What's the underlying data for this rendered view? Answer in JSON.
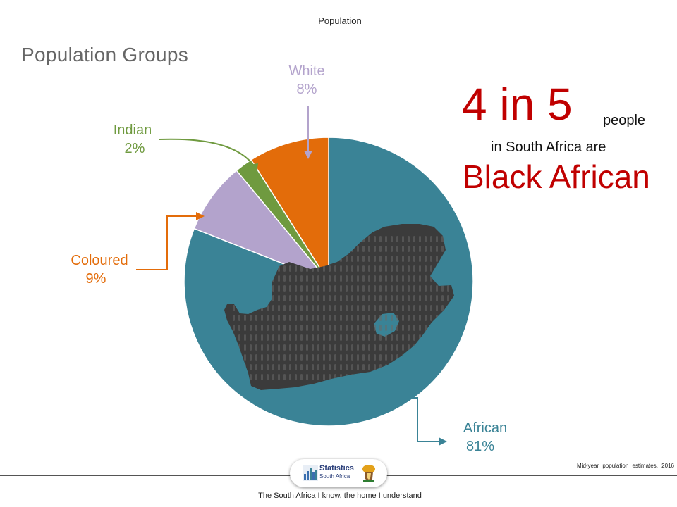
{
  "header": {
    "section": "Population"
  },
  "page_title": "Population Groups",
  "headline": {
    "big": "4 in 5",
    "small_1": "people",
    "small_2": "in South Africa are",
    "emphasis": "Black African"
  },
  "labels": {
    "white": {
      "name": "White",
      "pct": "8%"
    },
    "indian": {
      "name": "Indian",
      "pct": "2%"
    },
    "coloured": {
      "name": "Coloured",
      "pct": "9%"
    },
    "african": {
      "name": "African",
      "pct": "81%"
    }
  },
  "chart_data": {
    "type": "pie",
    "categories": [
      "African",
      "White",
      "Indian",
      "Coloured"
    ],
    "values": [
      81,
      8,
      2,
      9
    ],
    "colors": [
      "#3a8396",
      "#b3a3cc",
      "#6f9a3f",
      "#e36c0a"
    ],
    "title": "Population Groups",
    "start_angle_deg": 0,
    "direction": "clockwise"
  },
  "source": "Mid-year population estimates, 2016",
  "footer": {
    "tagline": "The South Africa I know, the home I understand",
    "logo_line_1": "Statistics",
    "logo_line_2": "South Africa"
  },
  "colors": {
    "headline_red": "#c00000",
    "african": "#3a8396",
    "white": "#b3a3cc",
    "indian": "#6f9a3f",
    "coloured": "#e36c0a",
    "map": "#3b3b3b"
  },
  "icons": [
    "south-africa-map-icon",
    "statssa-logo-icon",
    "coat-of-arms-icon"
  ]
}
